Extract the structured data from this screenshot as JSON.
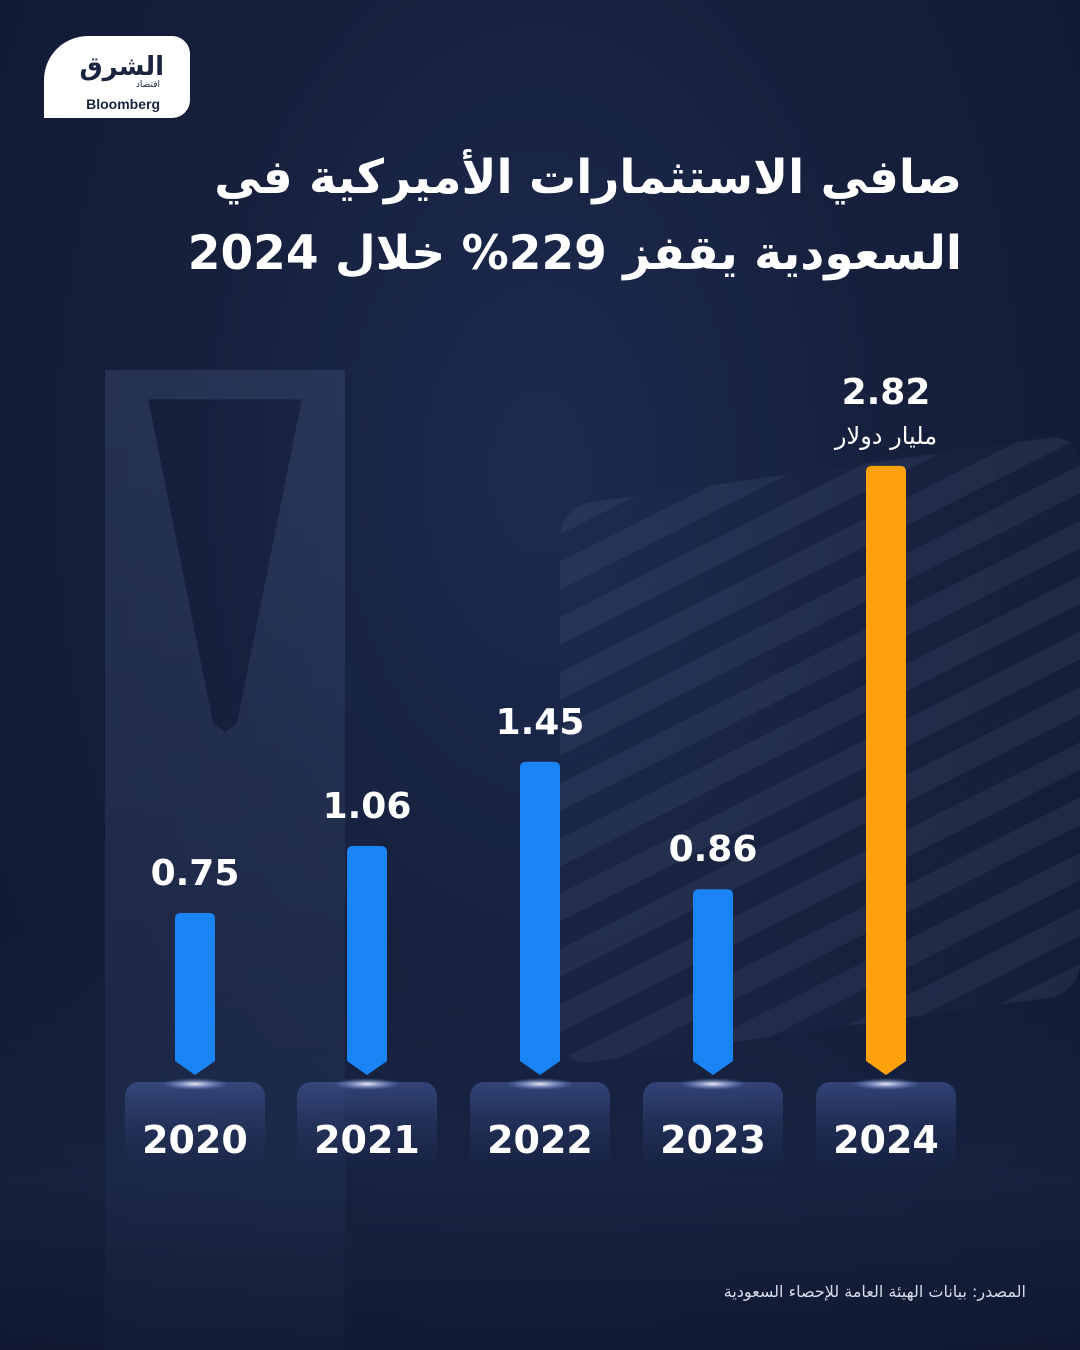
{
  "logo": {
    "main": "الشرق",
    "sub": "اقتصاد",
    "partner": "Bloomberg"
  },
  "title": {
    "line1": "صافي الاستثمارات الأميركية في",
    "line2": "السعودية يقفز 229% خلال 2024"
  },
  "source": "المصدر: بيانات الهيئة العامة للإحصاء السعودية",
  "colors": {
    "bar": "#1a84f5",
    "highlight": "#ffa10a"
  },
  "chart_data": {
    "type": "bar",
    "title": "صافي الاستثمارات الأميركية في السعودية يقفز 229% خلال 2024",
    "categories": [
      "2020",
      "2021",
      "2022",
      "2023",
      "2024"
    ],
    "values": [
      0.75,
      1.06,
      1.45,
      0.86,
      2.82
    ],
    "unit": "مليار دولار",
    "highlight_index": 4,
    "xlabel": "",
    "ylabel": "",
    "grid": false,
    "legend": "none"
  }
}
